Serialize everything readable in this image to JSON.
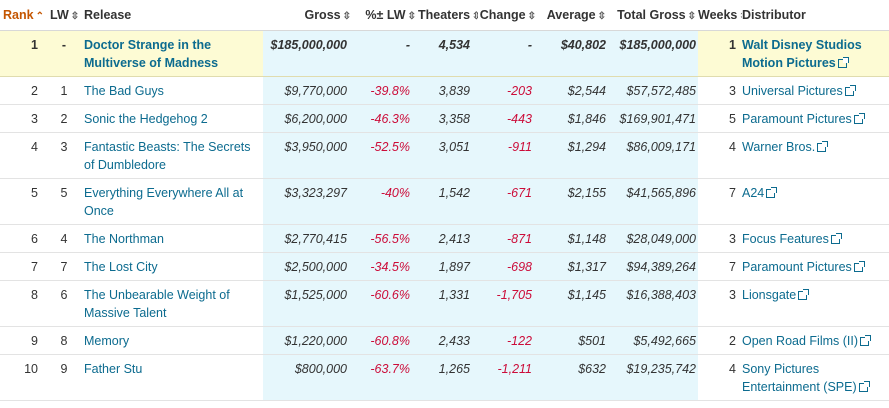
{
  "headers": {
    "rank": "Rank",
    "lw": "LW",
    "release": "Release",
    "gross": "Gross",
    "pct_lw": "%± LW",
    "theaters": "Theaters",
    "change": "Change",
    "average": "Average",
    "total_gross": "Total Gross",
    "weeks": "Weeks",
    "distributor": "Distributor"
  },
  "icons": {
    "sorted": "sort-asc-icon",
    "sortable": "sort-both-icon",
    "external": "external-link-icon"
  },
  "rows": [
    {
      "rank": "1",
      "lw": "-",
      "release": "Doctor Strange in the Multiverse of Madness",
      "gross": "$185,000,000",
      "pct_lw": "-",
      "theaters": "4,534",
      "change": "-",
      "average": "$40,802",
      "total_gross": "$185,000,000",
      "weeks": "1",
      "distributor": "Walt Disney Studios Motion Pictures"
    },
    {
      "rank": "2",
      "lw": "1",
      "release": "The Bad Guys",
      "gross": "$9,770,000",
      "pct_lw": "-39.8%",
      "theaters": "3,839",
      "change": "-203",
      "average": "$2,544",
      "total_gross": "$57,572,485",
      "weeks": "3",
      "distributor": "Universal Pictures"
    },
    {
      "rank": "3",
      "lw": "2",
      "release": "Sonic the Hedgehog 2",
      "gross": "$6,200,000",
      "pct_lw": "-46.3%",
      "theaters": "3,358",
      "change": "-443",
      "average": "$1,846",
      "total_gross": "$169,901,471",
      "weeks": "5",
      "distributor": "Paramount Pictures"
    },
    {
      "rank": "4",
      "lw": "3",
      "release": "Fantastic Beasts: The Secrets of Dumbledore",
      "gross": "$3,950,000",
      "pct_lw": "-52.5%",
      "theaters": "3,051",
      "change": "-911",
      "average": "$1,294",
      "total_gross": "$86,009,171",
      "weeks": "4",
      "distributor": "Warner Bros."
    },
    {
      "rank": "5",
      "lw": "5",
      "release": "Everything Everywhere All at Once",
      "gross": "$3,323,297",
      "pct_lw": "-40%",
      "theaters": "1,542",
      "change": "-671",
      "average": "$2,155",
      "total_gross": "$41,565,896",
      "weeks": "7",
      "distributor": "A24"
    },
    {
      "rank": "6",
      "lw": "4",
      "release": "The Northman",
      "gross": "$2,770,415",
      "pct_lw": "-56.5%",
      "theaters": "2,413",
      "change": "-871",
      "average": "$1,148",
      "total_gross": "$28,049,000",
      "weeks": "3",
      "distributor": "Focus Features"
    },
    {
      "rank": "7",
      "lw": "7",
      "release": "The Lost City",
      "gross": "$2,500,000",
      "pct_lw": "-34.5%",
      "theaters": "1,897",
      "change": "-698",
      "average": "$1,317",
      "total_gross": "$94,389,264",
      "weeks": "7",
      "distributor": "Paramount Pictures"
    },
    {
      "rank": "8",
      "lw": "6",
      "release": "The Unbearable Weight of Massive Talent",
      "gross": "$1,525,000",
      "pct_lw": "-60.6%",
      "theaters": "1,331",
      "change": "-1,705",
      "average": "$1,145",
      "total_gross": "$16,388,403",
      "weeks": "3",
      "distributor": "Lionsgate"
    },
    {
      "rank": "9",
      "lw": "8",
      "release": "Memory",
      "gross": "$1,220,000",
      "pct_lw": "-60.8%",
      "theaters": "2,433",
      "change": "-122",
      "average": "$501",
      "total_gross": "$5,492,665",
      "weeks": "2",
      "distributor": "Open Road Films (II)"
    },
    {
      "rank": "10",
      "lw": "9",
      "release": "Father Stu",
      "gross": "$800,000",
      "pct_lw": "-63.7%",
      "theaters": "1,265",
      "change": "-1,211",
      "average": "$632",
      "total_gross": "$19,235,742",
      "weeks": "4",
      "distributor": "Sony Pictures Entertainment (SPE)"
    }
  ]
}
